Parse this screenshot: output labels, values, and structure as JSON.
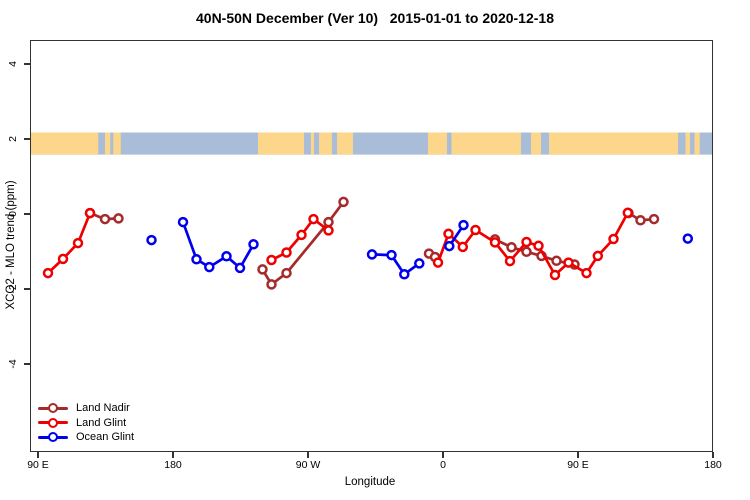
{
  "title": "40N-50N December (Ver 10)   2015-01-01 to 2020-12-18",
  "chart_data": {
    "type": "line",
    "title": "40N-50N December (Ver 10)   2015-01-01 to 2020-12-18",
    "xlabel": "Longitude",
    "ylabel": "XCO2 - MLO trend (ppm)",
    "grid": "off",
    "legend_position": "bottom-left",
    "x_axis": {
      "description": "Longitude axis spanning 450 degrees starting at 90E, wrapping east through 180, 90W, 0, 90E to 180",
      "labels": [
        "90 E",
        "180",
        "90 W",
        "0",
        "90 E",
        "180"
      ],
      "tick_lons": [
        90,
        180,
        270,
        360,
        450,
        540
      ],
      "range": [
        84.7,
        538.7
      ]
    },
    "y_axis": {
      "labels": [
        "4",
        "2",
        "0",
        "-2",
        "-4"
      ],
      "tick_values": [
        4,
        2,
        0,
        -2,
        -4
      ],
      "range": [
        -6.3,
        4.6
      ]
    },
    "map_band": {
      "description": "World map strip of the 40N-50N latitude band drawn across the plot near y=2",
      "ocean": "#A9BDD9",
      "land": "#FBD68B",
      "top": 2.2,
      "bottom": 1.61,
      "land_segments": [
        [
          84.7,
          129.5
        ],
        [
          134,
          137.5
        ],
        [
          139.5,
          144.5
        ],
        [
          236,
          266.7
        ],
        [
          271.3,
          273.3
        ],
        [
          276.7,
          285.3
        ],
        [
          288.7,
          299.3
        ],
        [
          349.3,
          362
        ],
        [
          365,
          411.3
        ],
        [
          418,
          424.7
        ],
        [
          430,
          516
        ],
        [
          521,
          524
        ],
        [
          527,
          530.5
        ]
      ]
    },
    "series": [
      {
        "name": "Land Nadir",
        "color": "#A52A2A",
        "segments": [
          [
            [
              124,
              0.05
            ],
            [
              134,
              -0.11
            ],
            [
              143,
              -0.09
            ]
          ],
          [
            [
              239,
              -1.45
            ],
            [
              245,
              -1.85
            ],
            [
              255,
              -1.55
            ],
            [
              283,
              -0.19
            ],
            [
              293,
              0.35
            ]
          ],
          [
            [
              350,
              -1.03
            ],
            [
              354,
              -1.12
            ]
          ],
          [
            [
              394,
              -0.65
            ],
            [
              405,
              -0.86
            ],
            [
              415,
              -0.98
            ],
            [
              425,
              -1.09
            ],
            [
              435,
              -1.22
            ],
            [
              447,
              -1.32
            ]
          ],
          [
            [
              483,
              0.05
            ],
            [
              491,
              -0.14
            ],
            [
              500,
              -0.11
            ]
          ]
        ]
      },
      {
        "name": "Land Glint",
        "color": "#EE0000",
        "segments": [
          [
            [
              96,
              -1.55
            ],
            [
              106,
              -1.17
            ],
            [
              116,
              -0.75
            ],
            [
              124,
              0.05
            ]
          ],
          [
            [
              245,
              -1.2
            ],
            [
              255,
              -1.0
            ],
            [
              265,
              -0.53
            ],
            [
              273,
              -0.11
            ],
            [
              283,
              -0.41
            ]
          ],
          [
            [
              356,
              -1.27
            ],
            [
              363,
              -0.5
            ],
            [
              372.5,
              -0.85
            ],
            [
              381,
              -0.4
            ],
            [
              394,
              -0.73
            ],
            [
              404,
              -1.23
            ],
            [
              415,
              -0.72
            ],
            [
              423,
              -0.82
            ],
            [
              434,
              -1.6
            ],
            [
              443,
              -1.27
            ],
            [
              455,
              -1.55
            ],
            [
              462.5,
              -1.09
            ],
            [
              473,
              -0.64
            ],
            [
              482.5,
              0.06
            ]
          ]
        ]
      },
      {
        "name": "Ocean Glint",
        "color": "#0000EE",
        "segments": [
          [
            [
              165,
              -0.67
            ]
          ],
          [
            [
              186,
              -0.19
            ],
            [
              195,
              -1.18
            ],
            [
              203.5,
              -1.39
            ],
            [
              215,
              -1.1
            ],
            [
              224,
              -1.41
            ],
            [
              233,
              -0.78
            ]
          ],
          [
            [
              312,
              -1.05
            ],
            [
              325,
              -1.07
            ],
            [
              333.5,
              -1.58
            ],
            [
              343.5,
              -1.29
            ]
          ],
          [
            [
              363.5,
              -0.83
            ],
            [
              373,
              -0.27
            ]
          ],
          [
            [
              522.5,
              -0.63
            ]
          ]
        ]
      }
    ]
  },
  "legend": {
    "items": [
      {
        "label": "Land Nadir",
        "color": "#A52A2A"
      },
      {
        "label": "Land Glint",
        "color": "#EE0000"
      },
      {
        "label": "Ocean Glint",
        "color": "#0000EE"
      }
    ]
  }
}
